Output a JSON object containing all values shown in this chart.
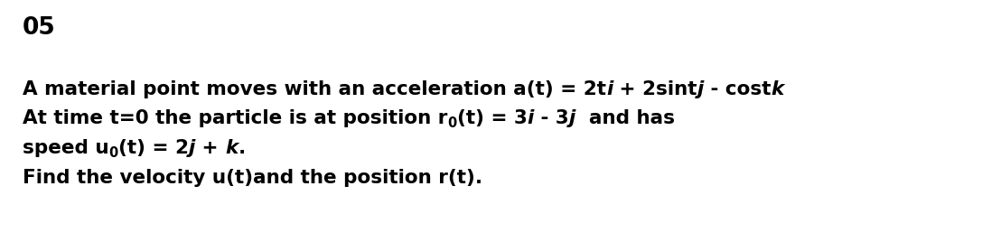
{
  "background_color": "#ffffff",
  "title": "05",
  "title_fontsize": 19,
  "body_fontsize": 15.5,
  "line1_parts": [
    {
      "text": "A material point moves with an acceleration a(t) = 2t",
      "style": "normal"
    },
    {
      "text": "i",
      "style": "bolditalic"
    },
    {
      "text": " + 2sint",
      "style": "normal"
    },
    {
      "text": "j",
      "style": "bolditalic"
    },
    {
      "text": " - cost",
      "style": "normal"
    },
    {
      "text": "k",
      "style": "bolditalic"
    }
  ],
  "line2_parts": [
    {
      "text": "At time t=0 the particle is at position r",
      "style": "normal"
    },
    {
      "text": "0",
      "style": "subscript"
    },
    {
      "text": "(t) = 3",
      "style": "normal"
    },
    {
      "text": "i",
      "style": "bolditalic"
    },
    {
      "text": " - 3",
      "style": "normal"
    },
    {
      "text": "j",
      "style": "bolditalic"
    },
    {
      "text": "  and has",
      "style": "normal"
    }
  ],
  "line3_parts": [
    {
      "text": "speed u",
      "style": "normal"
    },
    {
      "text": "0",
      "style": "subscript"
    },
    {
      "text": "(t) = 2",
      "style": "normal"
    },
    {
      "text": "j",
      "style": "bolditalic"
    },
    {
      "text": " + ",
      "style": "normal"
    },
    {
      "text": "k",
      "style": "bolditalic"
    },
    {
      "text": ".",
      "style": "normal"
    }
  ],
  "line4_parts": [
    {
      "text": "Find the velocity u(t)and the position r(t).",
      "style": "normal"
    }
  ]
}
